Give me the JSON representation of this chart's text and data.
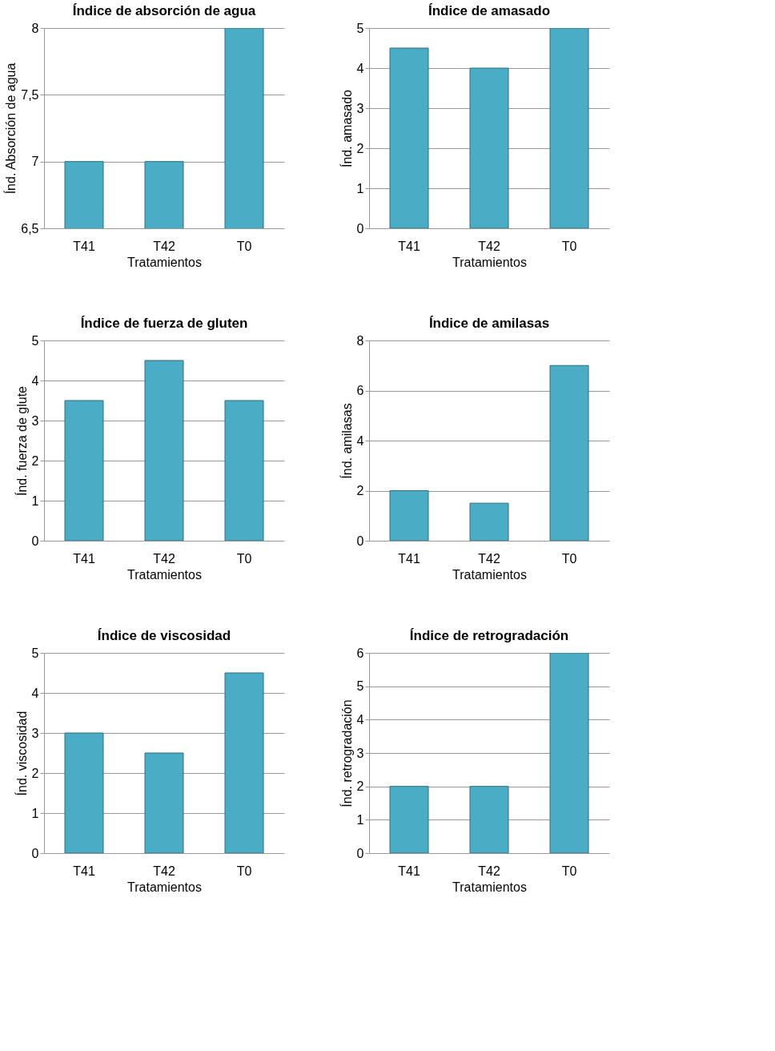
{
  "chart_data": [
    {
      "type": "bar",
      "title": "Índice de absorción de agua",
      "xlabel": "Tratamientos",
      "ylabel": "Índ. Absorción de agua",
      "categories": [
        "T41",
        "T42",
        "T0"
      ],
      "values": [
        7,
        7,
        8
      ],
      "color": "#4bacc6",
      "ylim": [
        6.5,
        8
      ],
      "yticks": [
        {
          "value": 6.5,
          "label": "6,5"
        },
        7,
        {
          "value": 7.5,
          "label": "7,5"
        },
        8
      ],
      "grid": "y",
      "legend": false
    },
    {
      "type": "bar",
      "title": "Índice de amasado",
      "xlabel": "Tratamientos",
      "ylabel": "Índ. amasado",
      "categories": [
        "T41",
        "T42",
        "T0"
      ],
      "values": [
        4.5,
        4,
        5
      ],
      "color": "#4bacc6",
      "ylim": [
        0,
        5
      ],
      "yticks": [
        0,
        1,
        2,
        3,
        4,
        5
      ],
      "grid": "y",
      "legend": false
    },
    {
      "type": "bar",
      "title": "Índice de fuerza de gluten",
      "xlabel": "Tratamientos",
      "ylabel": "Índ. fuerza de glute",
      "categories": [
        "T41",
        "T42",
        "T0"
      ],
      "values": [
        3.5,
        4.5,
        3.5
      ],
      "color": "#4bacc6",
      "ylim": [
        0,
        5
      ],
      "yticks": [
        0,
        1,
        2,
        3,
        4,
        5
      ],
      "grid": "y",
      "legend": false
    },
    {
      "type": "bar",
      "title": "Índice de amilasas",
      "xlabel": "Tratamientos",
      "ylabel": "Índ. amilasas",
      "categories": [
        "T41",
        "T42",
        "T0"
      ],
      "values": [
        2,
        1.5,
        7
      ],
      "color": "#4bacc6",
      "ylim": [
        0,
        8
      ],
      "yticks": [
        0,
        2,
        4,
        6,
        8
      ],
      "grid": "y",
      "legend": false
    },
    {
      "type": "bar",
      "title": "Índice de viscosidad",
      "xlabel": "Tratamientos",
      "ylabel": "Índ. viscosidad",
      "categories": [
        "T41",
        "T42",
        "T0"
      ],
      "values": [
        3,
        2.5,
        4.5
      ],
      "color": "#4bacc6",
      "ylim": [
        0,
        5
      ],
      "yticks": [
        0,
        1,
        2,
        3,
        4,
        5
      ],
      "grid": "y",
      "legend": false
    },
    {
      "type": "bar",
      "title": "Índice de retrogradación",
      "xlabel": "Tratamientos",
      "ylabel": "Índ. retrogradación",
      "categories": [
        "T41",
        "T42",
        "T0"
      ],
      "values": [
        2,
        2,
        6
      ],
      "color": "#4bacc6",
      "ylim": [
        0,
        6
      ],
      "yticks": [
        0,
        1,
        2,
        3,
        4,
        5,
        6
      ],
      "grid": "y",
      "legend": false
    }
  ]
}
